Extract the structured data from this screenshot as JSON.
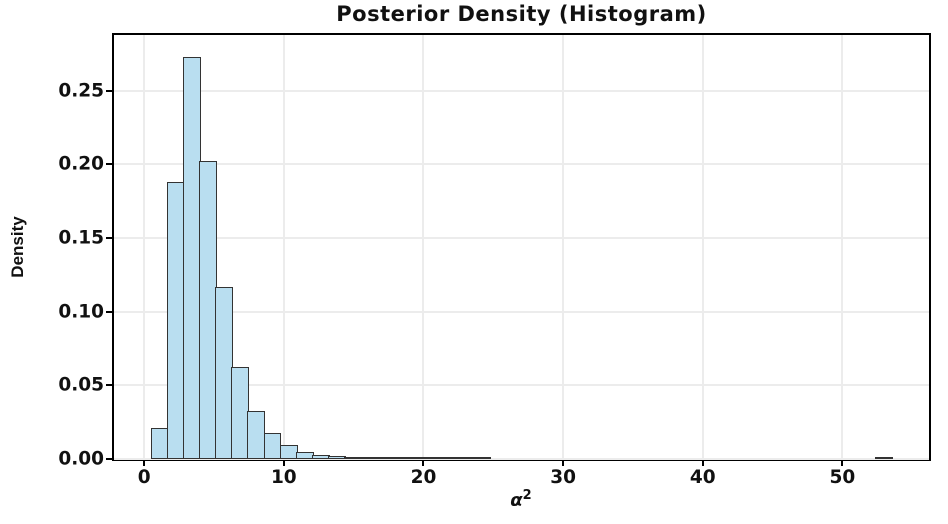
{
  "chart_data": {
    "type": "bar",
    "subtype": "histogram",
    "title": "Posterior Density (Histogram)",
    "xlabel": {
      "symbol": "α",
      "exponent": "2",
      "text": "α²"
    },
    "ylabel": "Density",
    "x_axis": {
      "min": -2.16,
      "max": 56.2,
      "ticks": [
        0,
        10,
        20,
        30,
        40,
        50
      ],
      "tick_labels": [
        "0",
        "10",
        "20",
        "30",
        "40",
        "50"
      ]
    },
    "y_axis": {
      "min": 0,
      "max": 0.2878,
      "ticks": [
        0,
        0.05,
        0.1,
        0.15,
        0.2,
        0.25
      ],
      "tick_labels": [
        "0.00",
        "0.05",
        "0.10",
        "0.15",
        "0.20",
        "0.25"
      ]
    },
    "grid": true,
    "legend": false,
    "histogram": {
      "bin_start": 0.55,
      "bin_width": 1.152,
      "densities": [
        0.0212,
        0.188,
        0.273,
        0.202,
        0.117,
        0.0624,
        0.0326,
        0.0174,
        0.0097,
        0.0046,
        0.0026,
        0.0018,
        0.0012,
        0.0009,
        0.0007,
        0.0005,
        0.0004,
        0.0003,
        0.0003,
        0.0002,
        0.0001,
        0,
        0,
        0,
        0,
        0,
        0,
        0,
        0,
        0,
        0,
        0,
        0,
        0,
        0,
        0,
        0,
        0,
        0,
        0,
        0,
        0,
        0,
        0,
        0,
        0.0001
      ]
    },
    "colors": {
      "bar_fill": "#b9def0",
      "bar_edge": "#333333",
      "grid": "#ececec",
      "spine": "#000000",
      "text": "#111111",
      "background": "#ffffff"
    }
  }
}
